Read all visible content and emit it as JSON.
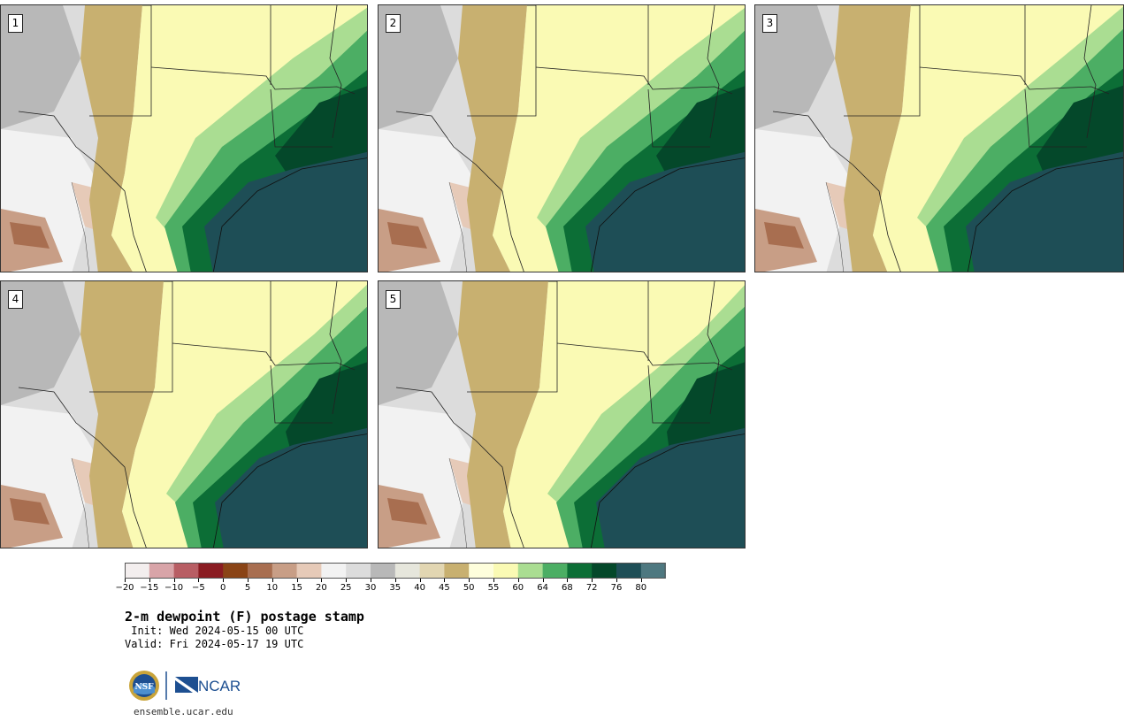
{
  "panels": [
    {
      "label": "1",
      "variant": 0
    },
    {
      "label": "2",
      "variant": 1
    },
    {
      "label": "3",
      "variant": 2
    },
    {
      "label": "4",
      "variant": 3
    },
    {
      "label": "5",
      "variant": 4
    }
  ],
  "colorbar": {
    "levels": [
      "−20",
      "−15",
      "−10",
      "−5",
      "0",
      "5",
      "10",
      "15",
      "20",
      "25",
      "30",
      "35",
      "40",
      "45",
      "50",
      "55",
      "60",
      "64",
      "68",
      "72",
      "76",
      "80"
    ],
    "colors": [
      "#f3eeee",
      "#d8a4a8",
      "#b85e64",
      "#8a1c22",
      "#8a4416",
      "#a86e50",
      "#c89e86",
      "#e6cab8",
      "#f2f2f2",
      "#dcdcdc",
      "#b8b8b8",
      "#e6e6dc",
      "#e2d6b2",
      "#c8b070",
      "#fefedc",
      "#fafab4",
      "#aadd92",
      "#4cae64",
      "#0c6e36",
      "#04482a",
      "#1e4e56",
      "#4e7880"
    ]
  },
  "title": "2-m dewpoint (F) postage stamp",
  "init": " Init: Wed 2024-05-15 00 UTC",
  "valid": "Valid: Fri 2024-05-17 19 UTC",
  "logos": {
    "nsf": "NSF",
    "ncar": "NCAR"
  },
  "url": "ensemble.ucar.edu"
}
